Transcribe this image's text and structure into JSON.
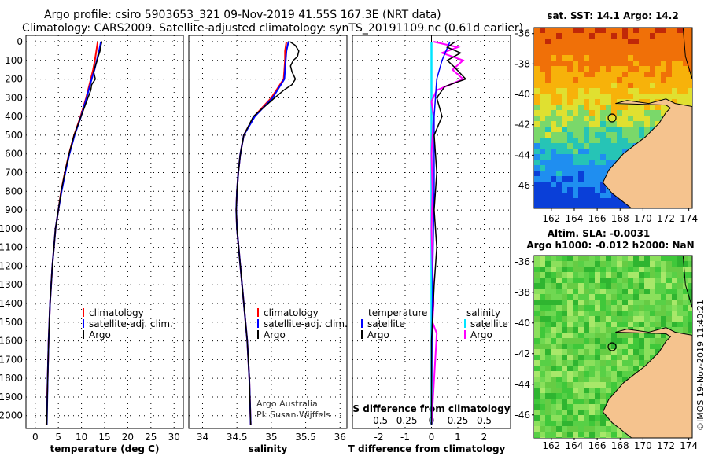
{
  "titles": {
    "line1": "Argo profile: csiro 5903653_321 09-Nov-2019 41.55S 167.3E (NRT data)",
    "line2": "Climatology: CARS2009. Satellite-adjusted climatology: synTS_20191109.nc (0.61d earlier)"
  },
  "colors": {
    "climatology": "#ff0000",
    "satellite": "#0000ff",
    "argo": "#000000",
    "s_satellite": "#00e5ff",
    "s_argo": "#ff00ff",
    "land": "#f5c38e"
  },
  "chart_data": [
    {
      "type": "line",
      "panel": "temperature",
      "xlabel": "temperature (deg C)",
      "ylabel": "",
      "xlim": [
        -2,
        32
      ],
      "ylim": [
        2060,
        0
      ],
      "xticks": [
        "0",
        "5",
        "10",
        "15",
        "20",
        "25",
        "30"
      ],
      "xtick_values": [
        0,
        5,
        10,
        15,
        20,
        25,
        30
      ],
      "yticks": [
        "0",
        "100",
        "200",
        "300",
        "400",
        "500",
        "600",
        "700",
        "800",
        "900",
        "1000",
        "1100",
        "1200",
        "1300",
        "1400",
        "1500",
        "1600",
        "1700",
        "1800",
        "1900",
        "2000"
      ],
      "ytick_values": [
        0,
        100,
        200,
        300,
        400,
        500,
        600,
        700,
        800,
        900,
        1000,
        1100,
        1200,
        1300,
        1400,
        1500,
        1600,
        1700,
        1800,
        1900,
        2000
      ],
      "legend": [
        "climatology",
        "satellite-adj. clim.",
        "Argo"
      ],
      "legend_position": "lower-right",
      "series": [
        {
          "name": "climatology",
          "depth": [
            0,
            50,
            100,
            150,
            200,
            300,
            400,
            500,
            600,
            700,
            800,
            900,
            1000,
            1200,
            1400,
            1600,
            1800,
            2050
          ],
          "values": [
            13.5,
            13.2,
            12.9,
            12.5,
            12.0,
            11.0,
            9.8,
            8.4,
            7.3,
            6.4,
            5.6,
            5.0,
            4.4,
            3.7,
            3.2,
            2.9,
            2.7,
            2.4
          ]
        },
        {
          "name": "satellite-adj. clim.",
          "depth": [
            0,
            50,
            100,
            150,
            200,
            300,
            400,
            500,
            600,
            700,
            800,
            900,
            1000,
            1200,
            1400,
            1600,
            1800,
            2050
          ],
          "values": [
            14.2,
            13.8,
            13.3,
            12.8,
            12.2,
            11.1,
            9.9,
            8.5,
            7.4,
            6.5,
            5.7,
            5.0,
            4.4,
            3.7,
            3.2,
            2.9,
            2.7,
            2.5
          ]
        },
        {
          "name": "Argo",
          "depth": [
            0,
            20,
            50,
            80,
            100,
            130,
            160,
            200,
            230,
            260,
            300,
            400,
            500,
            600,
            700,
            800,
            900,
            1000,
            1200,
            1400,
            1600,
            1800,
            2050
          ],
          "values": [
            14.4,
            14.2,
            14.0,
            13.6,
            13.4,
            13.0,
            12.6,
            13.0,
            12.2,
            12.0,
            11.4,
            9.9,
            8.4,
            7.3,
            6.4,
            5.6,
            5.0,
            4.4,
            3.7,
            3.2,
            2.9,
            2.7,
            2.5
          ]
        }
      ]
    },
    {
      "type": "line",
      "panel": "salinity",
      "xlabel": "salinity",
      "ylabel": "",
      "xlim": [
        33.8,
        36.1
      ],
      "ylim": [
        2060,
        0
      ],
      "xticks": [
        "34",
        "34.5",
        "35",
        "35.5",
        "36"
      ],
      "xtick_values": [
        34,
        34.5,
        35,
        35.5,
        36
      ],
      "legend": [
        "climatology",
        "satellite-adj. clim.",
        "Argo"
      ],
      "legend_position": "lower-right",
      "annotations": [
        "Argo Australia",
        "PI: Susan Wijffels"
      ],
      "series": [
        {
          "name": "climatology",
          "depth": [
            0,
            50,
            100,
            150,
            200,
            300,
            400,
            500,
            600,
            700,
            800,
            900,
            1000,
            1200,
            1400,
            1600,
            1800,
            2050
          ],
          "values": [
            35.22,
            35.2,
            35.2,
            35.19,
            35.18,
            35.0,
            34.75,
            34.6,
            34.55,
            34.52,
            34.5,
            34.49,
            34.5,
            34.55,
            34.6,
            34.65,
            34.68,
            34.7
          ]
        },
        {
          "name": "satellite-adj. clim.",
          "depth": [
            0,
            50,
            100,
            150,
            200,
            300,
            400,
            500,
            600,
            700,
            800,
            900,
            1000,
            1200,
            1400,
            1600,
            1800,
            2050
          ],
          "values": [
            35.25,
            35.22,
            35.21,
            35.2,
            35.19,
            35.02,
            34.76,
            34.6,
            34.55,
            34.52,
            34.5,
            34.49,
            34.5,
            34.55,
            34.6,
            34.65,
            34.68,
            34.7
          ]
        },
        {
          "name": "Argo",
          "depth": [
            0,
            20,
            50,
            80,
            100,
            130,
            160,
            200,
            230,
            260,
            300,
            400,
            500,
            600,
            700,
            800,
            900,
            1000,
            1200,
            1400,
            1600,
            1800,
            2050
          ],
          "values": [
            35.27,
            35.35,
            35.4,
            35.38,
            35.32,
            35.28,
            35.3,
            35.35,
            35.3,
            35.18,
            35.05,
            34.74,
            34.6,
            34.55,
            34.52,
            34.5,
            34.49,
            34.5,
            34.55,
            34.6,
            34.65,
            34.68,
            34.7
          ]
        }
      ]
    },
    {
      "type": "line",
      "panel": "difference",
      "xlabel": "T difference from climatology",
      "xlabel_top": "S difference from climatology",
      "xlim": [
        -3,
        3
      ],
      "ylim": [
        2060,
        0
      ],
      "xticks": [
        "-2",
        "-1",
        "0",
        "1",
        "2"
      ],
      "xtick_values": [
        -2,
        -1,
        0,
        1,
        2
      ],
      "s_xticks": [
        "-0.5",
        "-0.25",
        "0",
        "0.25",
        "0.5"
      ],
      "s_xtick_values": [
        -0.5,
        -0.25,
        0,
        0.25,
        0.5
      ],
      "legend_t_title": "temperature",
      "legend_t": [
        "satellite",
        "Argo"
      ],
      "legend_s_title": "salinity",
      "legend_s": [
        "satellite",
        "Argo"
      ],
      "series": [
        {
          "name": "T satellite",
          "depth": [
            0,
            100,
            200,
            400,
            800,
            1200,
            1600,
            2050
          ],
          "values": [
            0.7,
            0.4,
            0.2,
            0.1,
            0.1,
            0.05,
            0.02,
            0.0
          ]
        },
        {
          "name": "T Argo",
          "depth": [
            0,
            30,
            60,
            100,
            140,
            200,
            240,
            300,
            400,
            500,
            700,
            900,
            1100,
            1300,
            1600,
            1800,
            2050
          ],
          "values": [
            0.9,
            0.6,
            1.1,
            0.6,
            0.9,
            1.3,
            0.5,
            0.2,
            0.4,
            0.1,
            0.2,
            0.1,
            0.2,
            0.1,
            0.0,
            0.0,
            0.0
          ]
        },
        {
          "name": "S satellite",
          "depth": [
            0,
            200,
            500,
            1000,
            1500,
            2050
          ],
          "values": [
            0.0,
            0.0,
            0.0,
            0.0,
            0.0,
            0.0
          ]
        },
        {
          "name": "S Argo",
          "depth": [
            0,
            30,
            60,
            100,
            150,
            200,
            260,
            320,
            400,
            600,
            800,
            1000,
            1200,
            1400,
            1500,
            1560,
            2050
          ],
          "values": [
            0.02,
            0.25,
            0.1,
            0.3,
            0.2,
            0.3,
            0.05,
            0.0,
            0.02,
            0.0,
            0.01,
            0.0,
            0.01,
            0.02,
            0.01,
            0.05,
            0.0
          ]
        }
      ]
    }
  ],
  "maps": {
    "sst": {
      "title": "sat. SST: 14.1 Argo: 14.2",
      "lat_ticks": [
        "-36",
        "-38",
        "-40",
        "-42",
        "-44",
        "-46"
      ],
      "lon_ticks": [
        "162",
        "164",
        "166",
        "168",
        "170",
        "172",
        "174"
      ]
    },
    "sla": {
      "title1": "Altim. SLA: -0.0031",
      "title2": "Argo h1000: -0.012 h2000: NaN",
      "lat_ticks": [
        "-36",
        "-38",
        "-40",
        "-42",
        "-44",
        "-46"
      ],
      "lon_ticks": [
        "162",
        "164",
        "166",
        "168",
        "170",
        "172",
        "174"
      ]
    }
  },
  "stamp": "©IMOS 19-Nov-2019 11:40:21"
}
